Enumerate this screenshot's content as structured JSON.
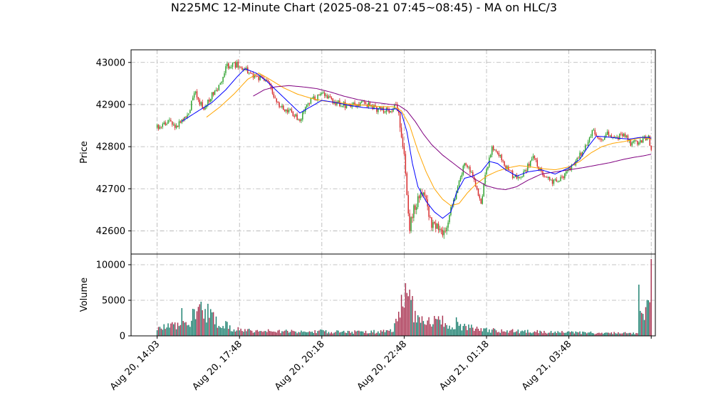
{
  "chart_data": {
    "type": "candlestick_with_volume",
    "title": "N225MC 12-Minute Chart (2025-08-21 07:45~08:45) - MA on HLC/3",
    "price_panel": {
      "ylabel": "Price",
      "ylim": [
        42545,
        43030
      ],
      "yticks": [
        42600,
        42700,
        42800,
        42900,
        43000
      ],
      "grid": true
    },
    "volume_panel": {
      "ylabel": "Volume",
      "ylim": [
        0,
        11500
      ],
      "yticks": [
        0,
        5000,
        10000
      ],
      "grid": true
    },
    "x_axis": {
      "index_range": [
        -19,
        363
      ],
      "tick_index": [
        0,
        60,
        120,
        180,
        240,
        300,
        360
      ],
      "tick_labels": [
        "Aug 20, 14:03",
        "Aug 20, 17:48",
        "Aug 20, 20:18",
        "Aug 20, 22:48",
        "Aug 21, 01:18",
        "Aug 21, 03:48",
        ""
      ]
    },
    "colors": {
      "up": "#2ca02c",
      "down": "#d62728",
      "vol_up": "#1a7f6e",
      "vol_down": "#a83250",
      "ma_fast": "#0000ff",
      "ma_mid": "#ffa500",
      "ma_slow": "#800080"
    },
    "price_anchors": [
      [
        0,
        42845
      ],
      [
        8,
        42860
      ],
      [
        14,
        42850
      ],
      [
        22,
        42875
      ],
      [
        28,
        42930
      ],
      [
        34,
        42885
      ],
      [
        40,
        42925
      ],
      [
        46,
        42945
      ],
      [
        50,
        42990
      ],
      [
        58,
        42995
      ],
      [
        64,
        42985
      ],
      [
        72,
        42965
      ],
      [
        80,
        42960
      ],
      [
        88,
        42900
      ],
      [
        96,
        42885
      ],
      [
        104,
        42865
      ],
      [
        110,
        42905
      ],
      [
        120,
        42925
      ],
      [
        130,
        42905
      ],
      [
        140,
        42895
      ],
      [
        150,
        42905
      ],
      [
        160,
        42890
      ],
      [
        168,
        42885
      ],
      [
        174,
        42895
      ],
      [
        176,
        42880
      ],
      [
        180,
        42780
      ],
      [
        184,
        42610
      ],
      [
        188,
        42660
      ],
      [
        194,
        42700
      ],
      [
        200,
        42610
      ],
      [
        206,
        42615
      ],
      [
        210,
        42590
      ],
      [
        214,
        42650
      ],
      [
        218,
        42690
      ],
      [
        224,
        42760
      ],
      [
        228,
        42745
      ],
      [
        232,
        42705
      ],
      [
        236,
        42670
      ],
      [
        240,
        42745
      ],
      [
        244,
        42800
      ],
      [
        250,
        42780
      ],
      [
        256,
        42740
      ],
      [
        262,
        42725
      ],
      [
        268,
        42740
      ],
      [
        274,
        42780
      ],
      [
        280,
        42735
      ],
      [
        286,
        42720
      ],
      [
        292,
        42715
      ],
      [
        298,
        42740
      ],
      [
        304,
        42760
      ],
      [
        308,
        42780
      ],
      [
        312,
        42800
      ],
      [
        318,
        42840
      ],
      [
        322,
        42815
      ],
      [
        328,
        42830
      ],
      [
        334,
        42820
      ],
      [
        340,
        42830
      ],
      [
        346,
        42805
      ],
      [
        352,
        42815
      ],
      [
        358,
        42820
      ],
      [
        360,
        42790
      ]
    ],
    "volume_anchors": [
      [
        0,
        1000
      ],
      [
        20,
        1600
      ],
      [
        30,
        3300
      ],
      [
        38,
        3100
      ],
      [
        46,
        1700
      ],
      [
        60,
        800
      ],
      [
        80,
        700
      ],
      [
        100,
        650
      ],
      [
        120,
        620
      ],
      [
        140,
        560
      ],
      [
        160,
        600
      ],
      [
        172,
        900
      ],
      [
        176,
        2600
      ],
      [
        180,
        5600
      ],
      [
        184,
        4100
      ],
      [
        190,
        2300
      ],
      [
        196,
        2100
      ],
      [
        204,
        2300
      ],
      [
        214,
        1500
      ],
      [
        224,
        1300
      ],
      [
        240,
        800
      ],
      [
        260,
        650
      ],
      [
        280,
        550
      ],
      [
        300,
        480
      ],
      [
        320,
        420
      ],
      [
        338,
        380
      ],
      [
        350,
        400
      ],
      [
        352,
        2800
      ],
      [
        356,
        3000
      ],
      [
        358,
        4500
      ],
      [
        360,
        9000
      ]
    ],
    "volume_spikes": [
      [
        18,
        3900
      ],
      [
        26,
        3800
      ],
      [
        32,
        4800
      ],
      [
        40,
        3300
      ],
      [
        184,
        6500
      ],
      [
        186,
        5600
      ],
      [
        202,
        2800
      ],
      [
        218,
        2600
      ],
      [
        234,
        1000
      ],
      [
        351,
        7200
      ],
      [
        358,
        5000
      ],
      [
        360,
        10800
      ]
    ],
    "ma_fast_anchors": [
      [
        18,
        42860
      ],
      [
        30,
        42885
      ],
      [
        40,
        42905
      ],
      [
        50,
        42935
      ],
      [
        58,
        42965
      ],
      [
        64,
        42985
      ],
      [
        72,
        42975
      ],
      [
        80,
        42955
      ],
      [
        88,
        42930
      ],
      [
        96,
        42905
      ],
      [
        104,
        42880
      ],
      [
        112,
        42895
      ],
      [
        120,
        42910
      ],
      [
        130,
        42905
      ],
      [
        140,
        42898
      ],
      [
        150,
        42893
      ],
      [
        160,
        42890
      ],
      [
        168,
        42888
      ],
      [
        174,
        42890
      ],
      [
        178,
        42880
      ],
      [
        182,
        42835
      ],
      [
        186,
        42760
      ],
      [
        190,
        42705
      ],
      [
        196,
        42670
      ],
      [
        202,
        42645
      ],
      [
        208,
        42630
      ],
      [
        214,
        42645
      ],
      [
        218,
        42690
      ],
      [
        224,
        42725
      ],
      [
        230,
        42730
      ],
      [
        236,
        42740
      ],
      [
        242,
        42765
      ],
      [
        248,
        42760
      ],
      [
        254,
        42745
      ],
      [
        262,
        42730
      ],
      [
        270,
        42740
      ],
      [
        280,
        42745
      ],
      [
        290,
        42735
      ],
      [
        300,
        42750
      ],
      [
        308,
        42770
      ],
      [
        314,
        42800
      ],
      [
        320,
        42825
      ],
      [
        328,
        42823
      ],
      [
        336,
        42820
      ],
      [
        344,
        42818
      ],
      [
        352,
        42822
      ],
      [
        358,
        42822
      ],
      [
        360,
        42820
      ]
    ],
    "ma_mid_anchors": [
      [
        36,
        42870
      ],
      [
        46,
        42895
      ],
      [
        56,
        42925
      ],
      [
        66,
        42960
      ],
      [
        74,
        42975
      ],
      [
        82,
        42960
      ],
      [
        92,
        42940
      ],
      [
        102,
        42925
      ],
      [
        112,
        42915
      ],
      [
        122,
        42908
      ],
      [
        132,
        42905
      ],
      [
        142,
        42900
      ],
      [
        152,
        42898
      ],
      [
        164,
        42895
      ],
      [
        172,
        42895
      ],
      [
        178,
        42885
      ],
      [
        184,
        42850
      ],
      [
        190,
        42790
      ],
      [
        196,
        42740
      ],
      [
        202,
        42700
      ],
      [
        208,
        42675
      ],
      [
        214,
        42660
      ],
      [
        220,
        42665
      ],
      [
        226,
        42690
      ],
      [
        232,
        42710
      ],
      [
        240,
        42730
      ],
      [
        248,
        42742
      ],
      [
        256,
        42750
      ],
      [
        264,
        42755
      ],
      [
        272,
        42752
      ],
      [
        280,
        42748
      ],
      [
        290,
        42745
      ],
      [
        300,
        42752
      ],
      [
        308,
        42765
      ],
      [
        316,
        42785
      ],
      [
        324,
        42800
      ],
      [
        332,
        42808
      ],
      [
        340,
        42812
      ],
      [
        348,
        42818
      ],
      [
        354,
        42822
      ],
      [
        360,
        42818
      ]
    ],
    "ma_slow_anchors": [
      [
        70,
        42920
      ],
      [
        78,
        42935
      ],
      [
        86,
        42942
      ],
      [
        96,
        42945
      ],
      [
        106,
        42942
      ],
      [
        116,
        42938
      ],
      [
        126,
        42930
      ],
      [
        136,
        42920
      ],
      [
        146,
        42912
      ],
      [
        156,
        42906
      ],
      [
        166,
        42902
      ],
      [
        176,
        42898
      ],
      [
        182,
        42885
      ],
      [
        188,
        42860
      ],
      [
        194,
        42830
      ],
      [
        200,
        42805
      ],
      [
        208,
        42780
      ],
      [
        216,
        42760
      ],
      [
        224,
        42740
      ],
      [
        232,
        42722
      ],
      [
        240,
        42707
      ],
      [
        248,
        42700
      ],
      [
        254,
        42698
      ],
      [
        262,
        42705
      ],
      [
        270,
        42720
      ],
      [
        280,
        42735
      ],
      [
        290,
        42740
      ],
      [
        300,
        42745
      ],
      [
        310,
        42750
      ],
      [
        320,
        42756
      ],
      [
        330,
        42762
      ],
      [
        340,
        42770
      ],
      [
        348,
        42775
      ],
      [
        354,
        42778
      ],
      [
        360,
        42782
      ]
    ]
  }
}
